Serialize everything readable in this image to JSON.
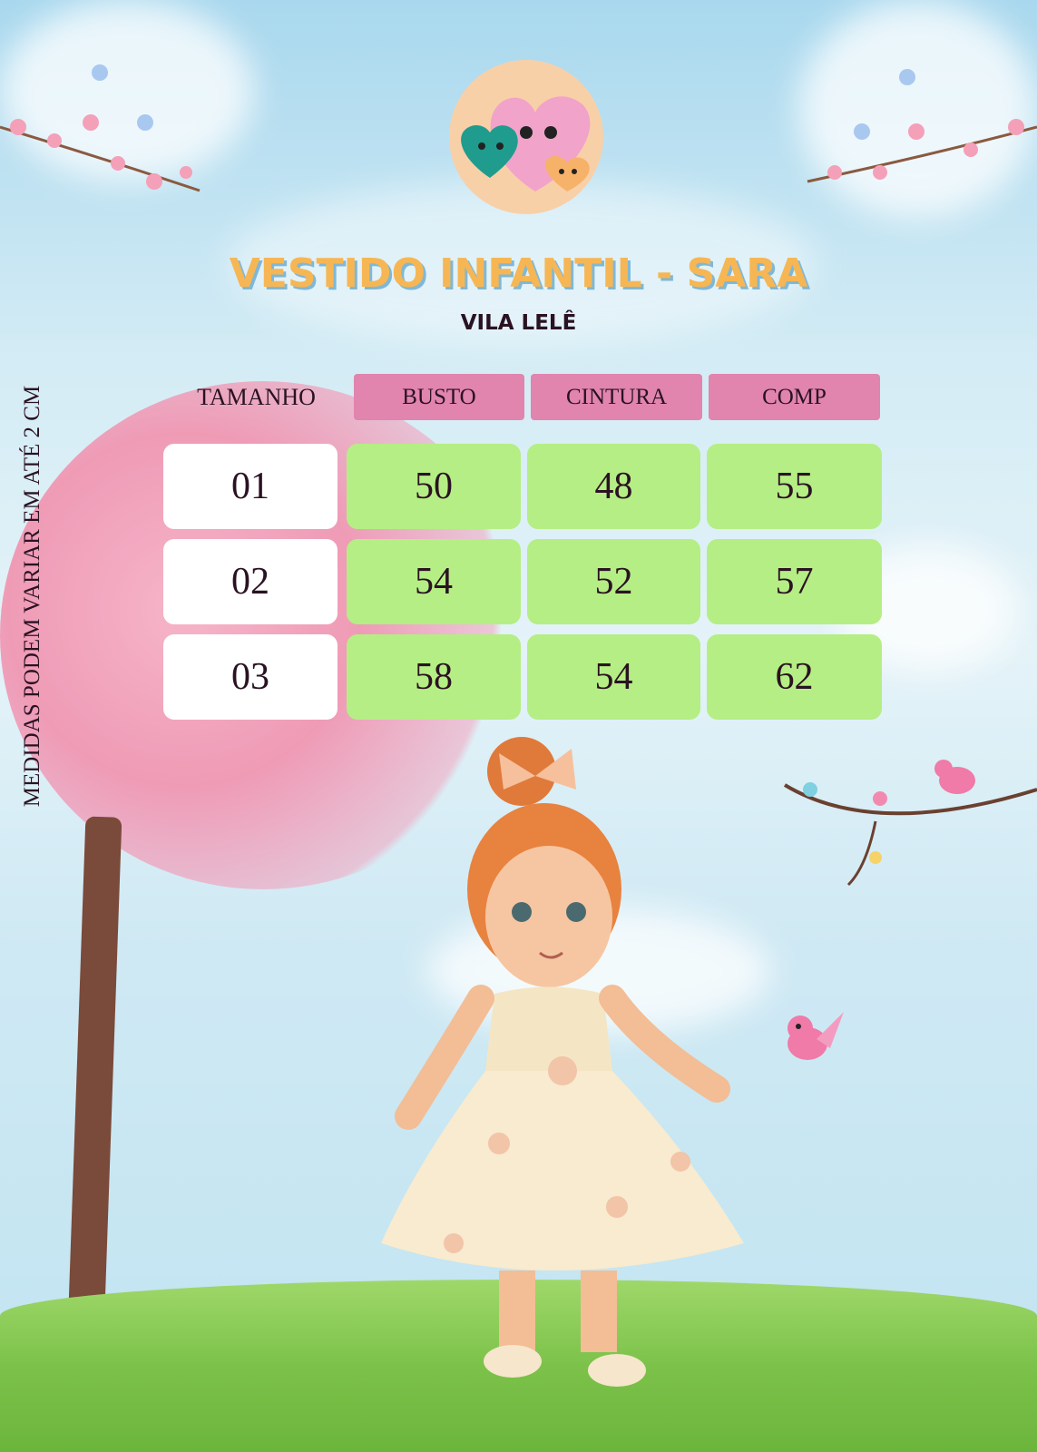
{
  "title": "VESTIDO INFANTIL - SARA",
  "subtitle": "VILA LELÊ",
  "side_note": "MEDIDAS PODEM VARIAR EM ATÉ 2 CM",
  "logo": {
    "icon": "hearts-logo-icon"
  },
  "colors": {
    "title": "#f6b654",
    "header_bg": "#e184ae",
    "value_bg": "#b5ee84",
    "size_bg": "#ffffff",
    "text": "#2a1222"
  },
  "table": {
    "headers": [
      "TAMANHO",
      "BUSTO",
      "CINTURA",
      "COMP"
    ],
    "rows": [
      {
        "size": "01",
        "busto": "50",
        "cintura": "48",
        "comp": "55"
      },
      {
        "size": "02",
        "busto": "54",
        "cintura": "52",
        "comp": "57"
      },
      {
        "size": "03",
        "busto": "58",
        "cintura": "54",
        "comp": "62"
      }
    ]
  }
}
